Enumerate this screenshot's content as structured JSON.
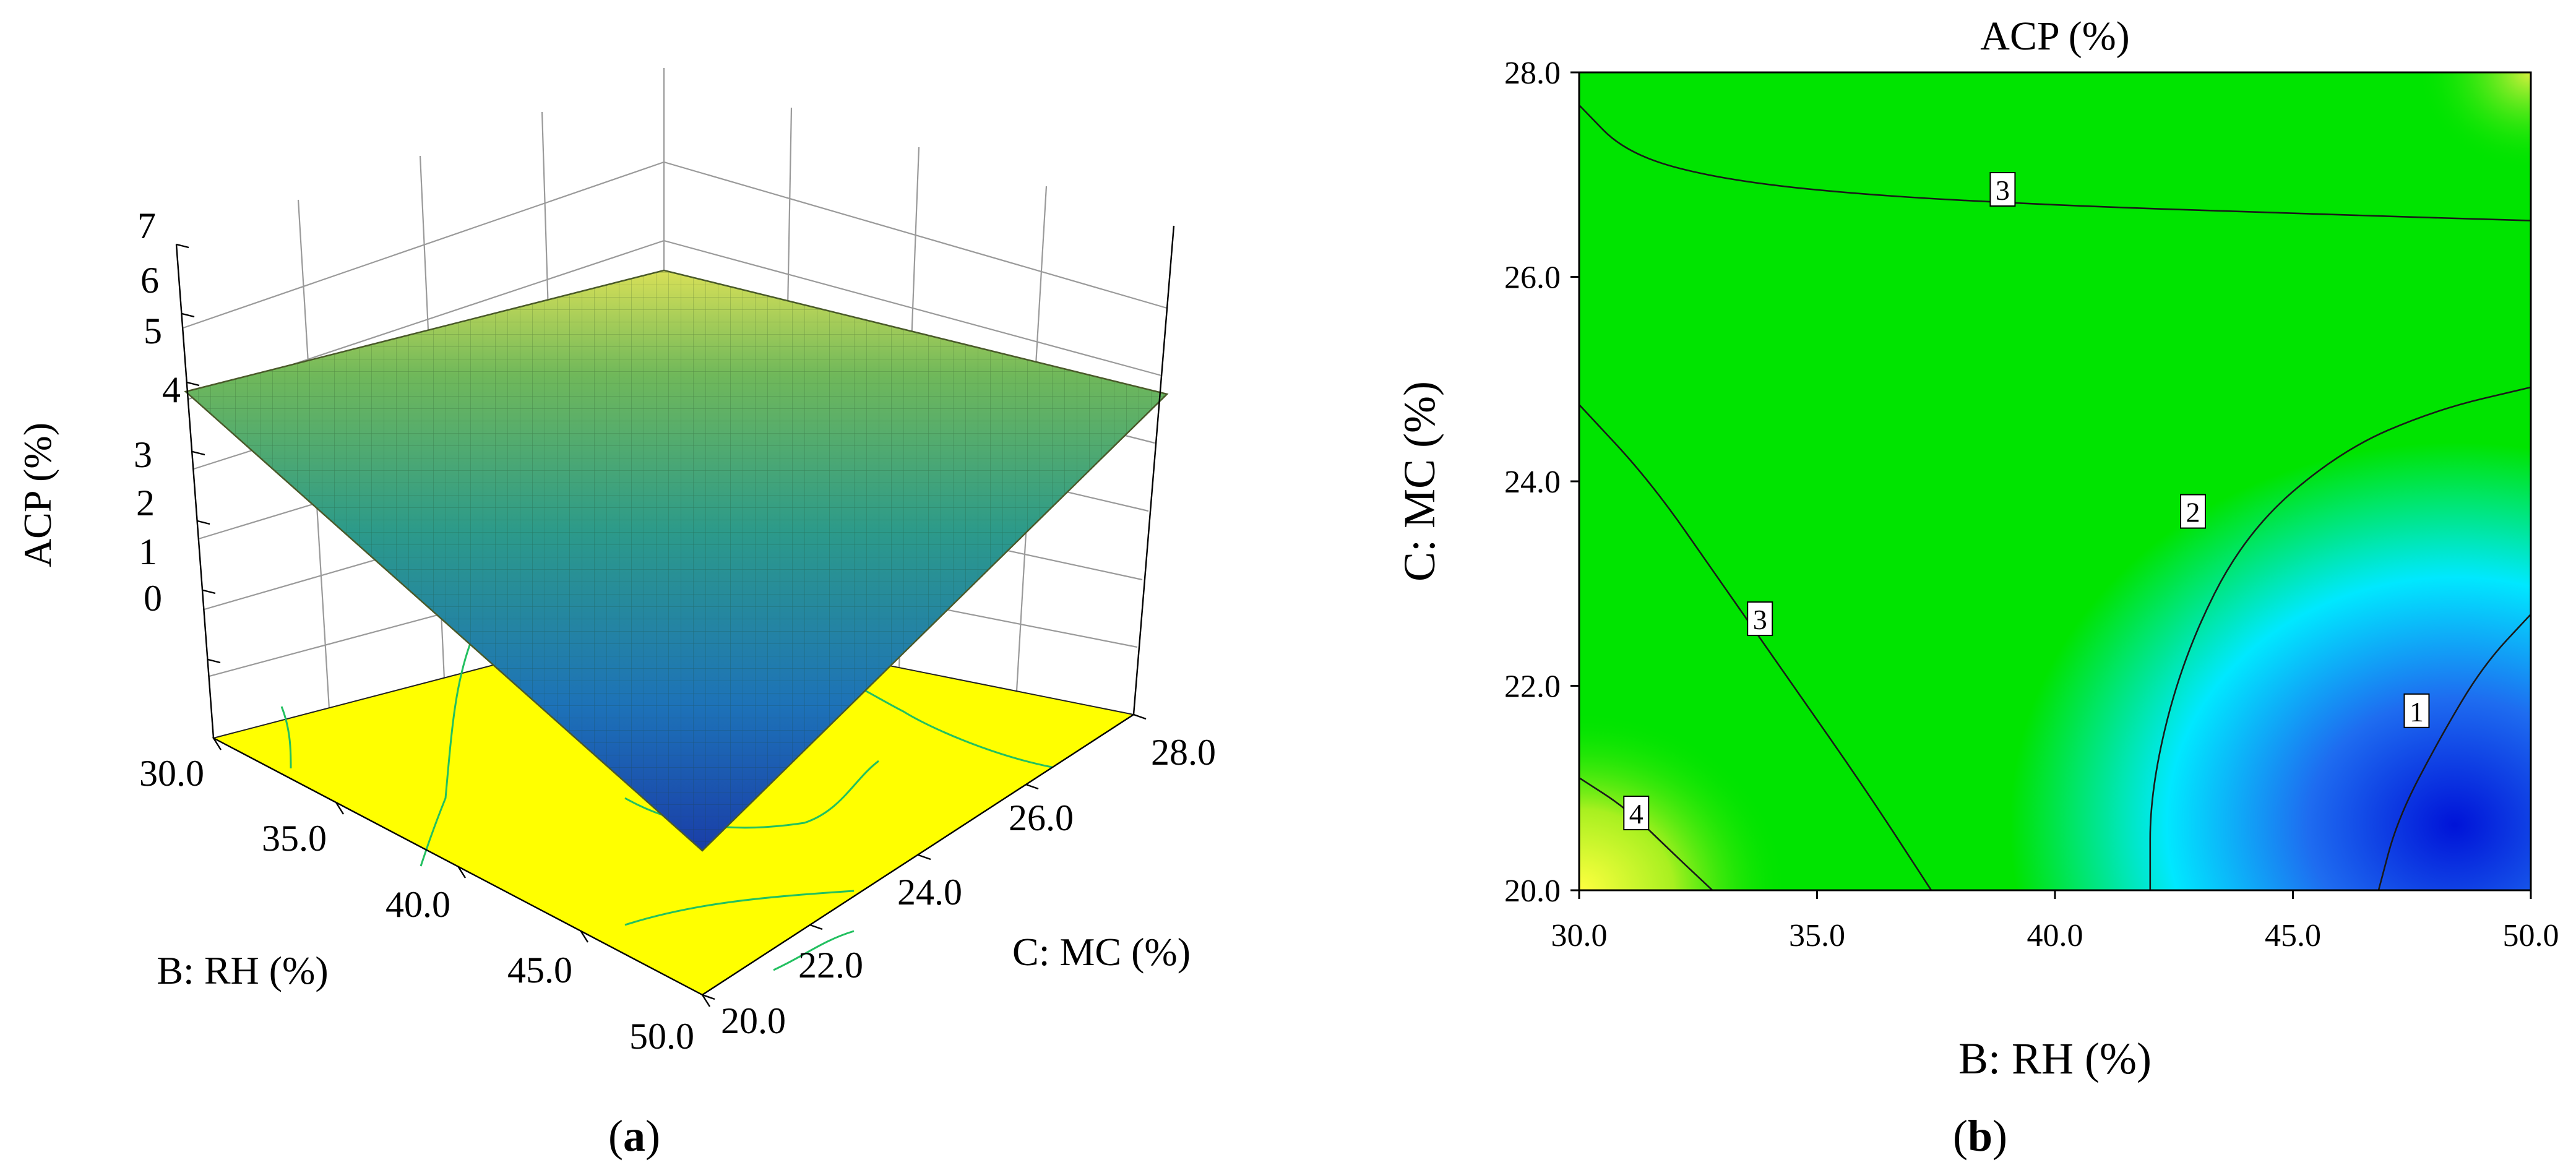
{
  "panels": {
    "a": {
      "caption": "(a)",
      "caption_parts": [
        "(",
        "a",
        ")"
      ]
    },
    "b": {
      "caption": "(b)",
      "caption_parts": [
        "(",
        "b",
        ")"
      ]
    }
  },
  "chart_data": [
    {
      "type": "surface",
      "panel": "a",
      "zlabel": "ACP (%)",
      "xlabel": "B: RH (%)",
      "ylabel": "C: MC (%)",
      "x_ticks": [
        "30.0",
        "35.0",
        "40.0",
        "45.0",
        "50.0"
      ],
      "y_ticks": [
        "20.0",
        "22.0",
        "24.0",
        "26.0",
        "28.0"
      ],
      "z_ticks": [
        "0",
        "1",
        "2",
        "3",
        "4",
        "5",
        "6",
        "7"
      ],
      "xlim": [
        30,
        50
      ],
      "ylim": [
        20,
        28
      ],
      "zlim": [
        0,
        7
      ],
      "corner_values": {
        "rh30_mc20": 4.0,
        "rh50_mc20": 0.2,
        "rh30_mc28": 3.3,
        "rh50_mc28": 3.3
      },
      "colormap": [
        "#0a2fd8",
        "#00e5ff",
        "#00e400",
        "#ffff00"
      ],
      "base_plane_color": "#ffff00"
    },
    {
      "type": "contour",
      "panel": "b",
      "title": "ACP (%)",
      "xlabel": "B: RH (%)",
      "ylabel": "C: MC (%)",
      "x_ticks": [
        "30.0",
        "35.0",
        "40.0",
        "45.0",
        "50.0"
      ],
      "y_ticks": [
        "20.0",
        "22.0",
        "24.0",
        "26.0",
        "28.0"
      ],
      "xlim": [
        30,
        50
      ],
      "ylim": [
        20,
        28
      ],
      "contour_levels": [
        1,
        2,
        3,
        4
      ],
      "contour_labels": [
        "1",
        "2",
        "3",
        "4"
      ],
      "contours": [
        {
          "level": 3,
          "points": [
            [
              30,
              27.68
            ],
            [
              31,
              27.2
            ],
            [
              33,
              26.95
            ],
            [
              36,
              26.8
            ],
            [
              40,
              26.7
            ],
            [
              45,
              26.62
            ],
            [
              50,
              26.55
            ]
          ]
        },
        {
          "level": 3,
          "points": [
            [
              30,
              24.75
            ],
            [
              31.5,
              24.0
            ],
            [
              33,
              23.0
            ],
            [
              34.5,
              22.0
            ],
            [
              36,
              21.0
            ],
            [
              37.4,
              20.0
            ]
          ]
        },
        {
          "level": 2,
          "points": [
            [
              50,
              24.92
            ],
            [
              48,
              24.7
            ],
            [
              46,
              24.3
            ],
            [
              44,
              23.5
            ],
            [
              42.7,
              22.3
            ],
            [
              42.0,
              21.0
            ],
            [
              42.0,
              20.0
            ]
          ]
        },
        {
          "level": 1,
          "points": [
            [
              50,
              22.7
            ],
            [
              49,
              22.2
            ],
            [
              48.1,
              21.5
            ],
            [
              47.2,
              20.7
            ],
            [
              46.8,
              20.0
            ]
          ]
        },
        {
          "level": 4,
          "points": [
            [
              30,
              21.1
            ],
            [
              31,
              20.8
            ],
            [
              32,
              20.35
            ],
            [
              32.8,
              20.0
            ]
          ]
        }
      ],
      "label_positions": [
        {
          "text": "3",
          "x": 38.9,
          "y": 26.85
        },
        {
          "text": "3",
          "x": 33.8,
          "y": 22.65
        },
        {
          "text": "2",
          "x": 42.9,
          "y": 23.7
        },
        {
          "text": "1",
          "x": 47.6,
          "y": 21.75
        },
        {
          "text": "4",
          "x": 31.2,
          "y": 20.75
        }
      ],
      "colormap": [
        "#0a2fd8",
        "#00e5ff",
        "#00e400",
        "#ffff00"
      ]
    }
  ]
}
